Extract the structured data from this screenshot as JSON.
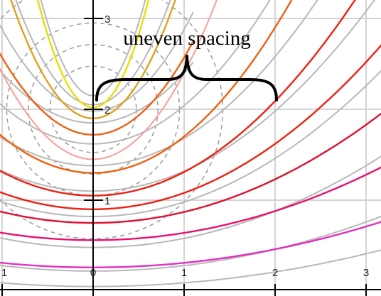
{
  "annotation": {
    "text": "uneven spacing"
  },
  "axes": {
    "x_tick_labels": [
      "1",
      "0",
      "1",
      "2",
      "3"
    ],
    "y_tick_labels": [
      "3",
      "2",
      "1"
    ]
  },
  "colors": {
    "grid": "#d4d4d4",
    "axis": "#000000",
    "gray_curve": "#b8b8b8",
    "dashed_circle": "#9a9a9a",
    "brace": "#000000",
    "curve_palette": [
      "#e8e000",
      "#e0a020",
      "#f06010",
      "#ee2010",
      "#e01030",
      "#e81070",
      "#e030c0",
      "#ff9a9a"
    ]
  }
}
